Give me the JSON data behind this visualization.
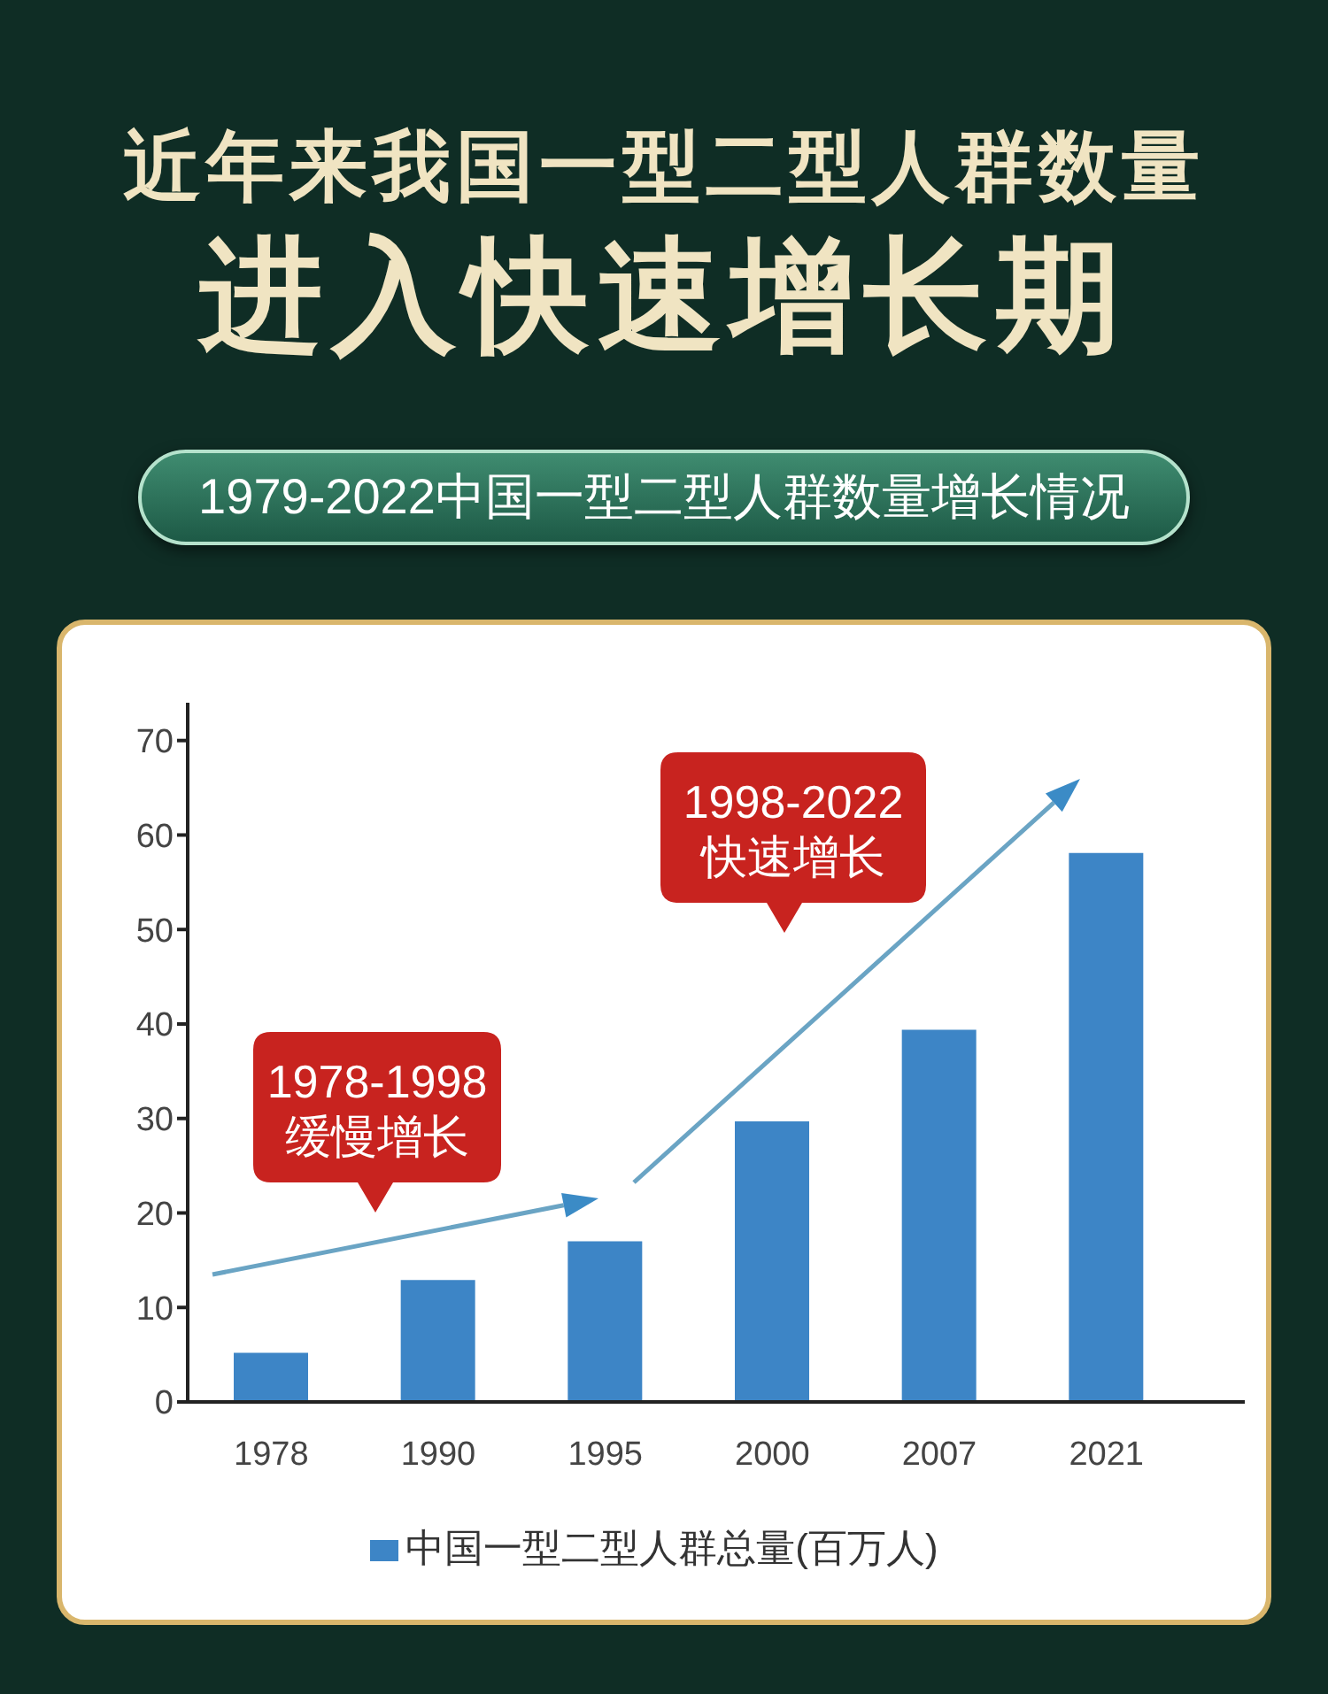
{
  "chart_data": {
    "type": "bar",
    "title": "近年来我国一型二型人群数量",
    "subtitle": "进入快速增长期",
    "categories": [
      "1978",
      "1990",
      "1995",
      "2000",
      "2007",
      "2021"
    ],
    "series": [
      {
        "name": "中国一型二型人群总量(百万人)",
        "color": "#3d85c6",
        "values": [
          5.2,
          12.9,
          17,
          29.7,
          39.4,
          58.1
        ]
      }
    ],
    "ylim": [
      0,
      74
    ],
    "yticks": [
      0,
      10,
      20,
      30,
      40,
      50,
      60,
      70
    ],
    "legend": "bottom",
    "annotations": [
      "1979-2022中国一型二型人群数量增长情况",
      "1978-1998\n缓慢增长",
      "1998-2022\n快速增长"
    ]
  }
}
